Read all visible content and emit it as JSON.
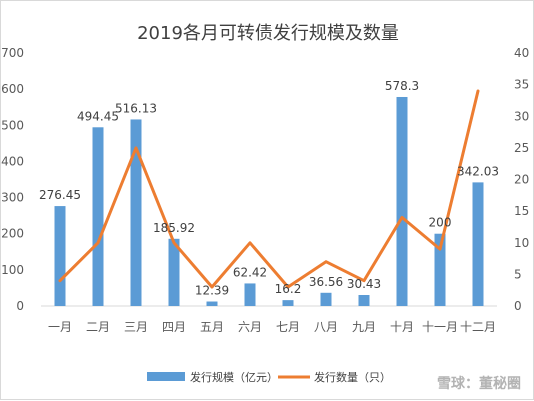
{
  "chart_data": {
    "type": "bar",
    "title": "2019各月可转债发行规模及数量",
    "categories": [
      "一月",
      "二月",
      "三月",
      "四月",
      "五月",
      "六月",
      "七月",
      "八月",
      "九月",
      "十月",
      "十一月",
      "十二月"
    ],
    "series": [
      {
        "name": "发行规模（亿元）",
        "type": "bar",
        "axis": "left",
        "color": "#5b9bd5",
        "values": [
          276.45,
          494.45,
          516.13,
          185.92,
          12.39,
          62.42,
          16.2,
          36.56,
          30.43,
          578.3,
          200,
          342.03
        ],
        "labels": [
          "276.45",
          "494.45",
          "516.13",
          "185.92",
          "12.39",
          "62.42",
          "16.2",
          "36.56",
          "30.43",
          "578.3",
          "200",
          "342.03"
        ]
      },
      {
        "name": "发行数量（只）",
        "type": "line",
        "axis": "right",
        "color": "#ed7d31",
        "values": [
          4,
          10,
          25,
          10,
          3,
          10,
          3,
          7,
          4,
          14,
          9,
          34
        ]
      }
    ],
    "ylim_left": [
      0,
      700
    ],
    "yticks_left": [
      "0",
      "100",
      "200",
      "300",
      "400",
      "500",
      "600",
      "700"
    ],
    "ylim_right": [
      0,
      40
    ],
    "yticks_right": [
      "0",
      "5",
      "10",
      "15",
      "20",
      "25",
      "30",
      "35",
      "40"
    ],
    "grid": false,
    "legend_position": "bottom"
  },
  "watermark": "雪球：董秘圈"
}
